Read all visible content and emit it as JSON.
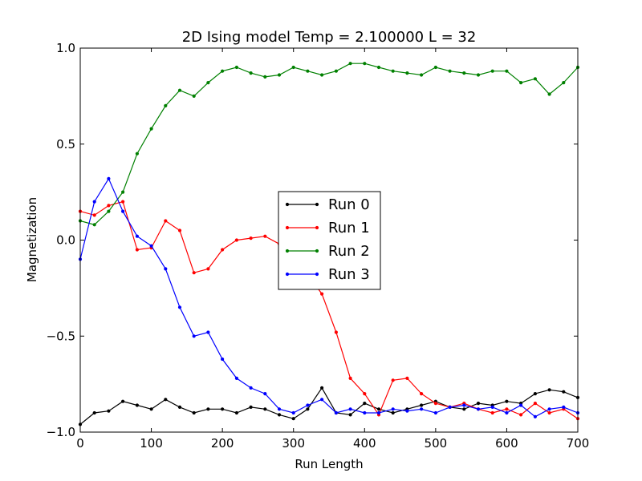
{
  "chart_data": {
    "type": "line",
    "title": "2D Ising model Temp = 2.100000 L = 32",
    "xlabel": "Run Length",
    "ylabel": "Magnetization",
    "xlim": [
      0,
      700
    ],
    "ylim": [
      -1.0,
      1.0
    ],
    "xticks": [
      0,
      100,
      200,
      300,
      400,
      500,
      600,
      700
    ],
    "xtick_labels": [
      "0",
      "100",
      "200",
      "300",
      "400",
      "500",
      "600",
      "700"
    ],
    "yticks": [
      -1.0,
      -0.5,
      0.0,
      0.5,
      1.0
    ],
    "ytick_labels": [
      "−1.0",
      "−0.5",
      "0.0",
      "0.5",
      "1.0"
    ],
    "grid": false,
    "legend_position": "center",
    "x": [
      0,
      20,
      40,
      60,
      80,
      100,
      120,
      140,
      160,
      180,
      200,
      220,
      240,
      260,
      280,
      300,
      320,
      340,
      360,
      380,
      400,
      420,
      440,
      460,
      480,
      500,
      520,
      540,
      560,
      580,
      600,
      620,
      640,
      660,
      680,
      700
    ],
    "series": [
      {
        "name": "Run 0",
        "color": "#000000",
        "values": [
          -0.96,
          -0.9,
          -0.89,
          -0.84,
          -0.86,
          -0.88,
          -0.83,
          -0.87,
          -0.9,
          -0.88,
          -0.88,
          -0.9,
          -0.87,
          -0.88,
          -0.91,
          -0.93,
          -0.88,
          -0.77,
          -0.9,
          -0.91,
          -0.85,
          -0.88,
          -0.9,
          -0.88,
          -0.86,
          -0.84,
          -0.87,
          -0.88,
          -0.85,
          -0.86,
          -0.84,
          -0.85,
          -0.8,
          -0.78,
          -0.79,
          -0.82
        ]
      },
      {
        "name": "Run 1",
        "color": "#ff0000",
        "values": [
          0.15,
          0.13,
          0.18,
          0.2,
          -0.05,
          -0.04,
          0.1,
          0.05,
          -0.17,
          -0.15,
          -0.05,
          0.0,
          0.01,
          0.02,
          -0.02,
          -0.07,
          -0.18,
          -0.28,
          -0.48,
          -0.72,
          -0.8,
          -0.91,
          -0.73,
          -0.72,
          -0.8,
          -0.85,
          -0.87,
          -0.85,
          -0.88,
          -0.9,
          -0.88,
          -0.91,
          -0.85,
          -0.9,
          -0.88,
          -0.93
        ]
      },
      {
        "name": "Run 2",
        "color": "#008000",
        "values": [
          0.1,
          0.08,
          0.15,
          0.25,
          0.45,
          0.58,
          0.7,
          0.78,
          0.75,
          0.82,
          0.88,
          0.9,
          0.87,
          0.85,
          0.86,
          0.9,
          0.88,
          0.86,
          0.88,
          0.92,
          0.92,
          0.9,
          0.88,
          0.87,
          0.86,
          0.9,
          0.88,
          0.87,
          0.86,
          0.88,
          0.88,
          0.82,
          0.84,
          0.76,
          0.82,
          0.9
        ]
      },
      {
        "name": "Run 3",
        "color": "#0000ff",
        "values": [
          -0.1,
          0.2,
          0.32,
          0.15,
          0.02,
          -0.03,
          -0.15,
          -0.35,
          -0.5,
          -0.48,
          -0.62,
          -0.72,
          -0.77,
          -0.8,
          -0.88,
          -0.9,
          -0.86,
          -0.83,
          -0.9,
          -0.88,
          -0.9,
          -0.9,
          -0.88,
          -0.89,
          -0.88,
          -0.9,
          -0.87,
          -0.86,
          -0.88,
          -0.87,
          -0.9,
          -0.86,
          -0.92,
          -0.88,
          -0.87,
          -0.9
        ]
      }
    ]
  }
}
